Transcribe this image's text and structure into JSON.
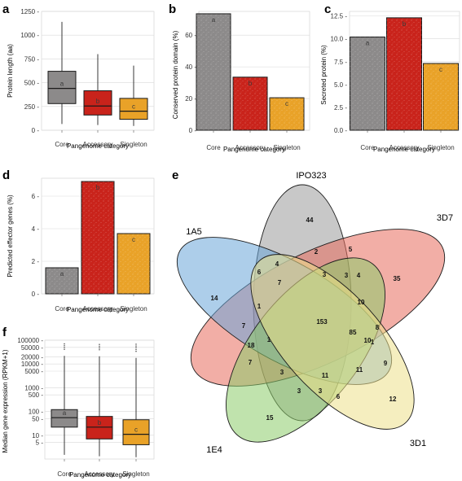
{
  "panels": {
    "a": {
      "letter": "a",
      "ylabel": "Protein length (aa)",
      "xlabel": "Pangenome category"
    },
    "b": {
      "letter": "b",
      "ylabel": "Conserved protein domain (%)",
      "xlabel": "Pangenome category"
    },
    "c": {
      "letter": "c",
      "ylabel": "Secreted protein (%)",
      "xlabel": "Pangenome category"
    },
    "d": {
      "letter": "d",
      "ylabel": "Predicted effector genes (%)",
      "xlabel": "Pangenome category"
    },
    "e": {
      "letter": "e"
    },
    "f": {
      "letter": "f",
      "ylabel": "Median gene expression (RPKM+1)",
      "xlabel": "Pangenome category"
    }
  },
  "colors": {
    "core": "#8c8a8a",
    "accessory": "#c9231b",
    "singleton": "#e9a228",
    "grid": "#d9d9d9",
    "panel_bg": "#ffffff"
  },
  "chart_data": [
    {
      "id": "a",
      "type": "box",
      "categories": [
        "Core",
        "Accessory",
        "Singleton"
      ],
      "ylim": [
        0,
        1250
      ],
      "yticks": [
        0,
        250,
        500,
        750,
        1000,
        1250
      ],
      "ytick_labels": [
        "0 -",
        "250 -",
        "500 -",
        "750 -",
        "1000 -",
        "1250 -"
      ],
      "boxes": [
        {
          "whisker_low": 65,
          "q1": 280,
          "median": 440,
          "q3": 620,
          "whisker_high": 1140
        },
        {
          "whisker_low": 55,
          "q1": 160,
          "median": 255,
          "q3": 415,
          "whisker_high": 800
        },
        {
          "whisker_low": 45,
          "q1": 115,
          "median": 200,
          "q3": 335,
          "whisker_high": 680
        }
      ],
      "significance": [
        "a",
        "b",
        "c"
      ]
    },
    {
      "id": "b",
      "type": "bar",
      "categories": [
        "Core",
        "Accessory",
        "Singleton"
      ],
      "values": [
        73.5,
        33.5,
        20.5
      ],
      "ylim": [
        0,
        75
      ],
      "yticks": [
        0,
        20,
        40,
        60
      ],
      "ytick_labels": [
        "0 -",
        "20 -",
        "40 -",
        "60 -"
      ],
      "significance": [
        "a",
        "b",
        "c"
      ]
    },
    {
      "id": "c",
      "type": "bar",
      "categories": [
        "Core",
        "Accessory",
        "Singleton"
      ],
      "values": [
        10.2,
        12.3,
        7.3
      ],
      "ylim": [
        0,
        13
      ],
      "yticks": [
        0.0,
        2.5,
        5.0,
        7.5,
        10.0,
        12.5
      ],
      "ytick_labels": [
        "0.0 -",
        "2.5 -",
        "5.0 -",
        "7.5 -",
        "10.0 -",
        "12.5 -"
      ],
      "significance": [
        "a",
        "b",
        "c"
      ]
    },
    {
      "id": "d",
      "type": "bar",
      "categories": [
        "Core",
        "Accessory",
        "Singleton"
      ],
      "values": [
        1.6,
        6.9,
        3.7
      ],
      "ylim": [
        0,
        7.1
      ],
      "yticks": [
        0,
        2,
        4,
        6
      ],
      "ytick_labels": [
        "0 -",
        "2 -",
        "4 -",
        "6 -"
      ],
      "significance": [
        "a",
        "b",
        "c"
      ]
    },
    {
      "id": "f",
      "type": "box",
      "yscale": "log",
      "categories": [
        "Core",
        "Accessory",
        "Singleton"
      ],
      "ylim": [
        1,
        100000
      ],
      "yticks": [
        5,
        10,
        50,
        100,
        500,
        1000,
        5000,
        10000,
        20000,
        50000,
        100000
      ],
      "ytick_labels": [
        "5 -",
        "10 -",
        "50 -",
        "100 -",
        "500 -",
        "1000 -",
        "5000 -",
        "10000 -",
        "20000 -",
        "50000 -",
        "100000 -"
      ],
      "boxes": [
        {
          "whisker_low": 1.5,
          "q1": 22,
          "median": 55,
          "q3": 120,
          "whisker_high": 22000
        },
        {
          "whisker_low": 1.3,
          "q1": 7,
          "median": 22,
          "q3": 62,
          "whisker_high": 21000
        },
        {
          "whisker_low": 1.2,
          "q1": 4,
          "median": 11,
          "q3": 45,
          "whisker_high": 18000
        }
      ],
      "significance": [
        "a",
        "b",
        "c"
      ]
    },
    {
      "id": "e",
      "type": "venn",
      "sets": [
        "IPO323",
        "3D7",
        "1A5",
        "1E4",
        "3D1"
      ],
      "regions": [
        "44",
        "2",
        "5",
        "3",
        "6",
        "4",
        "7",
        "3",
        "4",
        "35",
        "14",
        "1",
        "153",
        "10",
        "7",
        "1",
        "85",
        "8",
        "18",
        "1",
        "10",
        "7",
        "3",
        "11",
        "11",
        "9",
        "3",
        "3",
        "6",
        "12",
        "15"
      ]
    }
  ]
}
